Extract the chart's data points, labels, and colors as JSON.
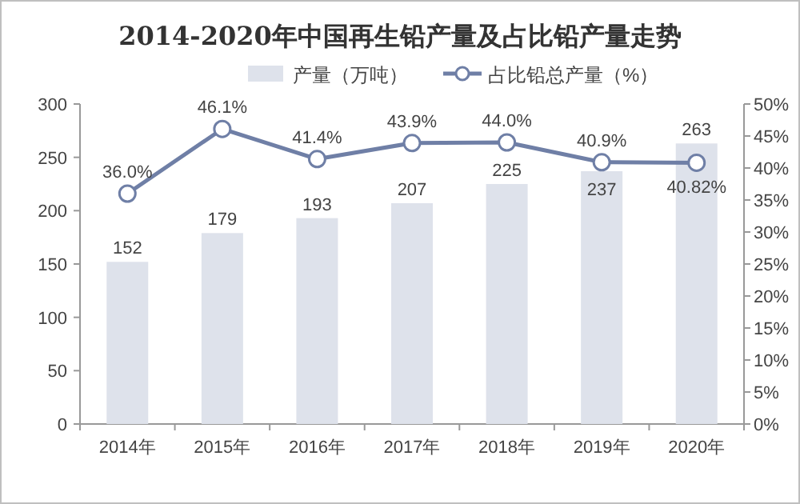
{
  "chart_data": {
    "type": "bar",
    "title": "2014-2020年中国再生铅产量及占比铅产量走势",
    "categories": [
      "2014年",
      "2015年",
      "2016年",
      "2017年",
      "2018年",
      "2019年",
      "2020年"
    ],
    "series": [
      {
        "name": "产量（万吨）",
        "color": "#dee2eb",
        "values": [
          152,
          179,
          193,
          207,
          225,
          237,
          263
        ],
        "value_labels": [
          "152",
          "179",
          "193",
          "207",
          "225",
          "237",
          "263"
        ]
      },
      {
        "name": "占比铅总产量（%）",
        "type": "line",
        "axis": "y2",
        "color": "#6f7fa6",
        "values": [
          36.0,
          46.1,
          41.4,
          43.9,
          44.0,
          40.9,
          40.82
        ],
        "value_labels": [
          "36.0%",
          "46.1%",
          "41.4%",
          "43.9%",
          "44.0%",
          "40.9%",
          "40.82%"
        ]
      }
    ],
    "ylim": [
      0,
      300
    ],
    "yticks": [
      0,
      50,
      100,
      150,
      200,
      250,
      300
    ],
    "y2lim": [
      0,
      50
    ],
    "y2ticks": [
      {
        "value": 0,
        "label": "0%"
      },
      {
        "value": 5,
        "label": "5%"
      },
      {
        "value": 10,
        "label": "10%"
      },
      {
        "value": 15,
        "label": "15%"
      },
      {
        "value": 20,
        "label": "20%"
      },
      {
        "value": 25,
        "label": "25%"
      },
      {
        "value": 30,
        "label": "30%"
      },
      {
        "value": 35,
        "label": "35%"
      },
      {
        "value": 40,
        "label": "40%"
      },
      {
        "value": 45,
        "label": "45%"
      },
      {
        "value": 50,
        "label": "50%"
      }
    ],
    "legend": "top",
    "marker": "circle",
    "grid": false
  }
}
